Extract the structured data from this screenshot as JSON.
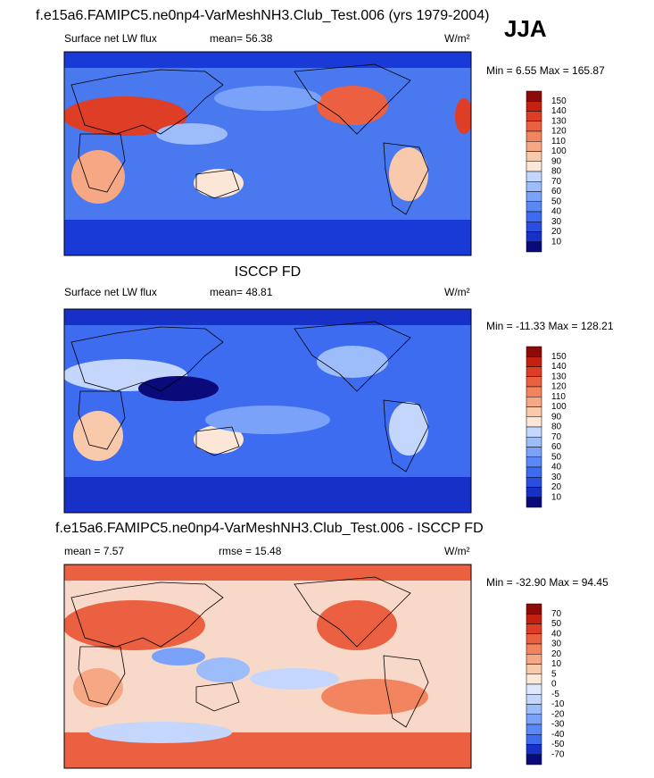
{
  "panels": [
    {
      "title": "f.e15a6.FAMIPC5.ne0np4-VarMeshNH3.Club_Test.006 (yrs 1979-2004)",
      "left": "Surface net LW flux",
      "center": "mean=  56.38",
      "right": "W/m²",
      "min_max": "Min =   6.55 Max = 165.87",
      "colorbar": {
        "labels": [
          150,
          140,
          130,
          120,
          110,
          100,
          90,
          80,
          70,
          60,
          50,
          40,
          30,
          20,
          10
        ],
        "colors": [
          "#8c0a0a",
          "#c52010",
          "#de3e25",
          "#ea6040",
          "#f28560",
          "#f6a784",
          "#f9c9ac",
          "#fbe6d8",
          "#c4d6fb",
          "#9dbcfa",
          "#7aa2f8",
          "#5a88f5",
          "#3e6cf0",
          "#2a4fe0",
          "#1630c8",
          "#0a0a7a"
        ]
      }
    },
    {
      "title": "ISCCP FD",
      "left": "Surface net LW flux",
      "center": "mean=  48.81",
      "right": "W/m²",
      "min_max": "Min = -11.33 Max = 128.21",
      "colorbar": {
        "labels": [
          150,
          140,
          130,
          120,
          110,
          100,
          90,
          80,
          70,
          60,
          50,
          40,
          30,
          20,
          10
        ],
        "colors": [
          "#8c0a0a",
          "#c52010",
          "#de3e25",
          "#ea6040",
          "#f28560",
          "#f6a784",
          "#f9c9ac",
          "#fbe6d8",
          "#c4d6fb",
          "#9dbcfa",
          "#7aa2f8",
          "#5a88f5",
          "#3e6cf0",
          "#2a4fe0",
          "#1630c8",
          "#0a0a7a"
        ]
      }
    },
    {
      "title": "f.e15a6.FAMIPC5.ne0np4-VarMeshNH3.Club_Test.006 - ISCCP FD",
      "left": "mean =  7.57",
      "center": "rmse =  15.48",
      "right": "W/m²",
      "min_max": "Min = -32.90 Max =  94.45",
      "colorbar": {
        "labels": [
          70,
          50,
          40,
          30,
          20,
          10,
          5,
          0,
          -5,
          -10,
          -20,
          -30,
          -40,
          -50,
          -70
        ],
        "colors": [
          "#8c0a0a",
          "#c52010",
          "#de3e25",
          "#ea6040",
          "#f28560",
          "#f6a784",
          "#f9c9ac",
          "#fbe6d8",
          "#dde8fc",
          "#c4d6fb",
          "#9dbcfa",
          "#7aa2f8",
          "#5a88f5",
          "#3e6cf0",
          "#1630c8",
          "#0a0a7a"
        ]
      }
    }
  ],
  "season": "JJA"
}
